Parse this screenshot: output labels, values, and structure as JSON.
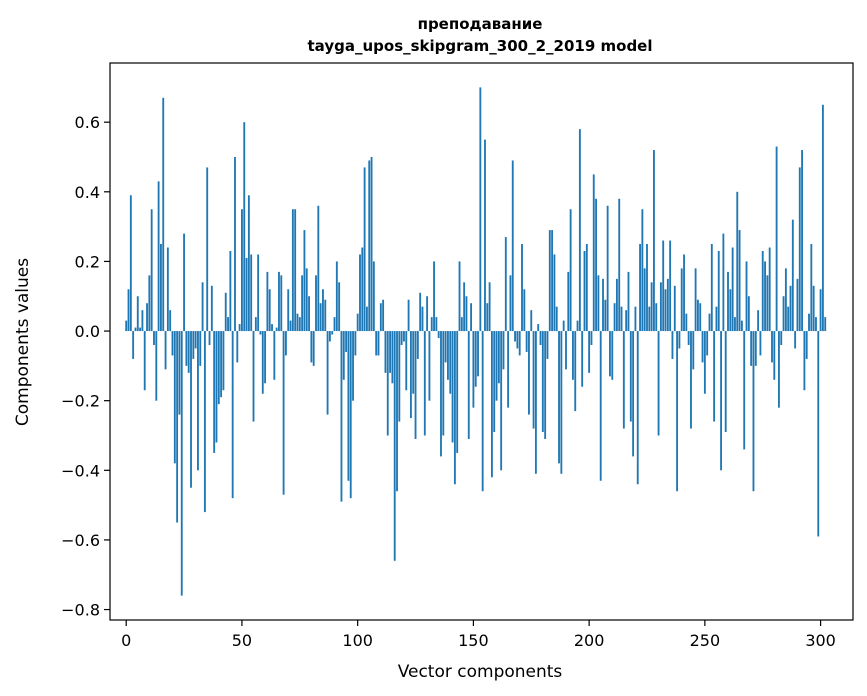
{
  "chart_data": {
    "type": "bar",
    "title": "преподавание",
    "subtitle": "tayga_upos_skipgram_300_2_2019 model",
    "xlabel": "Vector components",
    "ylabel": "Components values",
    "xlim": [
      -7,
      314
    ],
    "ylim": [
      -0.83,
      0.77
    ],
    "xticks": [
      0,
      50,
      100,
      150,
      200,
      250,
      300
    ],
    "xtick_labels": [
      "0",
      "50",
      "100",
      "150",
      "200",
      "250",
      "300"
    ],
    "yticks": [
      -0.8,
      -0.6,
      -0.4,
      -0.2,
      0.0,
      0.2,
      0.4,
      0.6
    ],
    "ytick_labels": [
      "−0.8",
      "−0.6",
      "−0.4",
      "−0.2",
      "0.0",
      "0.2",
      "0.4",
      "0.6"
    ],
    "grid": false,
    "bar_color": "#1f77b4",
    "values": [
      0.03,
      0.12,
      0.39,
      -0.08,
      0.01,
      0.1,
      0.01,
      0.06,
      -0.17,
      0.08,
      0.16,
      0.35,
      -0.04,
      -0.2,
      0.43,
      0.25,
      0.67,
      -0.11,
      0.24,
      0.06,
      -0.07,
      -0.38,
      -0.55,
      -0.24,
      -0.76,
      0.28,
      -0.1,
      -0.12,
      -0.45,
      -0.08,
      -0.05,
      -0.4,
      -0.1,
      0.14,
      -0.52,
      0.47,
      -0.04,
      0.13,
      -0.35,
      -0.32,
      -0.21,
      -0.19,
      -0.17,
      0.11,
      0.04,
      0.23,
      -0.48,
      0.5,
      -0.09,
      0.02,
      0.35,
      0.6,
      0.21,
      0.39,
      0.22,
      -0.26,
      0.04,
      0.22,
      -0.01,
      -0.18,
      -0.15,
      0.17,
      0.12,
      0.02,
      -0.14,
      0.01,
      0.17,
      0.16,
      -0.47,
      -0.07,
      0.12,
      0.03,
      0.35,
      0.35,
      0.05,
      0.04,
      0.16,
      0.29,
      0.18,
      0.1,
      -0.09,
      -0.1,
      0.16,
      0.36,
      0.08,
      0.12,
      0.09,
      -0.24,
      -0.03,
      -0.01,
      0.04,
      0.2,
      0.14,
      -0.49,
      -0.14,
      -0.06,
      -0.43,
      -0.48,
      -0.2,
      -0.07,
      0.05,
      0.22,
      0.24,
      0.47,
      0.07,
      0.49,
      0.5,
      0.2,
      -0.07,
      -0.07,
      0.08,
      0.09,
      -0.12,
      -0.3,
      -0.12,
      -0.15,
      -0.66,
      -0.46,
      -0.26,
      -0.04,
      -0.03,
      -0.17,
      0.09,
      -0.25,
      -0.18,
      -0.31,
      -0.08,
      0.11,
      0.07,
      -0.3,
      0.1,
      -0.2,
      0.04,
      0.2,
      0.04,
      -0.02,
      -0.36,
      -0.3,
      -0.09,
      -0.14,
      -0.18,
      -0.32,
      -0.44,
      -0.35,
      0.2,
      0.04,
      0.14,
      0.1,
      -0.31,
      0.08,
      -0.22,
      -0.16,
      -0.13,
      0.7,
      -0.46,
      0.55,
      0.08,
      0.14,
      -0.42,
      -0.29,
      -0.2,
      -0.15,
      -0.4,
      -0.11,
      0.27,
      -0.22,
      0.16,
      0.49,
      -0.03,
      -0.05,
      -0.07,
      0.25,
      0.12,
      -0.06,
      -0.24,
      0.06,
      -0.28,
      -0.41,
      0.02,
      -0.04,
      -0.29,
      -0.31,
      -0.08,
      0.29,
      0.29,
      0.22,
      0.07,
      -0.38,
      -0.41,
      0.03,
      -0.11,
      0.17,
      0.35,
      -0.14,
      -0.23,
      0.03,
      0.58,
      -0.16,
      0.23,
      0.25,
      -0.12,
      -0.04,
      0.45,
      0.38,
      0.16,
      -0.43,
      0.15,
      0.09,
      0.36,
      -0.13,
      -0.14,
      0.08,
      0.15,
      0.38,
      0.07,
      -0.28,
      0.06,
      0.17,
      -0.26,
      -0.36,
      0.07,
      -0.44,
      0.25,
      0.35,
      0.18,
      0.25,
      0.07,
      0.14,
      0.52,
      0.08,
      -0.3,
      0.14,
      0.26,
      0.12,
      0.15,
      0.26,
      -0.08,
      0.13,
      -0.46,
      -0.05,
      0.18,
      0.22,
      0.05,
      -0.04,
      -0.28,
      -0.11,
      0.18,
      0.09,
      0.08,
      -0.09,
      -0.18,
      -0.07,
      0.05,
      0.25,
      -0.26,
      0.07,
      0.23,
      -0.4,
      0.28,
      -0.29,
      0.17,
      0.12,
      0.24,
      0.04,
      0.4,
      0.29,
      0.03,
      -0.34,
      0.2,
      0.1,
      -0.1,
      -0.46,
      -0.1,
      0.06,
      -0.07,
      0.23,
      0.2,
      0.16,
      0.24,
      -0.09,
      -0.14,
      0.53,
      -0.22,
      -0.04,
      0.1,
      0.18,
      0.07,
      0.13,
      0.32,
      -0.05,
      0.15,
      0.47,
      0.52,
      -0.17,
      -0.08,
      0.05,
      0.25,
      0.13,
      0.04,
      -0.59,
      0.12,
      0.65,
      0.04
    ]
  }
}
